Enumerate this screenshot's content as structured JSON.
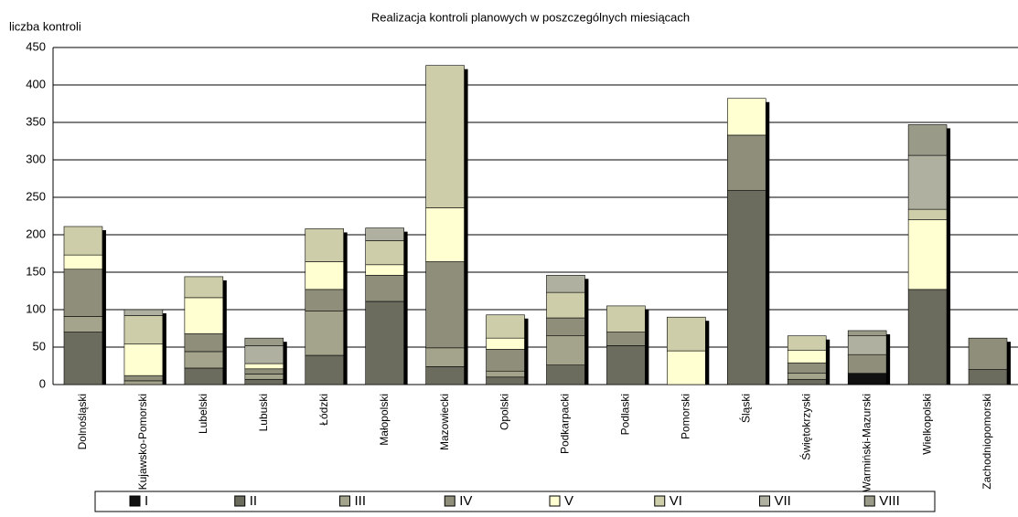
{
  "chart_data": {
    "type": "stacked_bar",
    "title": "Realizacja kontroli planowych w poszczególnych miesiącach",
    "y_label": "liczba kontroli",
    "categories": [
      "Dolnośląski",
      "Kujawsko-Pomorski",
      "Lubelski",
      "Lubuski",
      "Łódzki",
      "Małopolski",
      "Mazowiecki",
      "Opolski",
      "Podkarpacki",
      "Podlaski",
      "Pomorski",
      "Śląski",
      "Świętokrzyski",
      "Warmiński-Mazurski",
      "Wielkopolski",
      "Zachodniopomorski"
    ],
    "series": [
      {
        "name": "I",
        "color": "#111111",
        "values": [
          0,
          0,
          0,
          0,
          0,
          0,
          0,
          0,
          0,
          0,
          0,
          0,
          0,
          15,
          0,
          0
        ]
      },
      {
        "name": "II",
        "color": "#6b6b5e",
        "values": [
          70,
          0,
          22,
          7,
          39,
          111,
          24,
          10,
          26,
          52,
          0,
          259,
          7,
          0,
          127,
          20
        ]
      },
      {
        "name": "III",
        "color": "#a4a48c",
        "values": [
          21,
          5,
          22,
          7,
          59,
          0,
          25,
          8,
          39,
          0,
          0,
          0,
          8,
          0,
          0,
          0
        ]
      },
      {
        "name": "IV",
        "color": "#8e8e7a",
        "values": [
          63,
          7,
          24,
          7,
          29,
          35,
          115,
          29,
          24,
          18,
          0,
          74,
          14,
          25,
          0,
          42
        ]
      },
      {
        "name": "V",
        "color": "#ffffd2",
        "values": [
          19,
          42,
          48,
          7,
          37,
          14,
          72,
          15,
          0,
          0,
          45,
          49,
          17,
          0,
          93,
          0
        ]
      },
      {
        "name": "VI",
        "color": "#cdcdaa",
        "values": [
          38,
          38,
          28,
          0,
          44,
          32,
          190,
          31,
          34,
          35,
          45,
          0,
          19,
          0,
          14,
          0
        ]
      },
      {
        "name": "VII",
        "color": "#b0b0a0",
        "values": [
          0,
          8,
          0,
          24,
          0,
          17,
          0,
          0,
          23,
          0,
          0,
          0,
          0,
          25,
          72,
          0
        ]
      },
      {
        "name": "VIII",
        "color": "#9a9a88",
        "values": [
          0,
          0,
          0,
          10,
          0,
          0,
          0,
          0,
          0,
          0,
          0,
          0,
          0,
          7,
          41,
          0
        ]
      }
    ],
    "ylim": [
      0,
      450
    ],
    "yticks": [
      0,
      50,
      100,
      150,
      200,
      250,
      300,
      350,
      400,
      450
    ],
    "grid": true
  }
}
